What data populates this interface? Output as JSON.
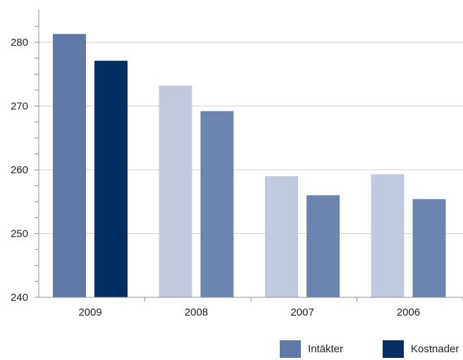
{
  "chart_data": {
    "type": "bar",
    "categories": [
      "2009",
      "2008",
      "2007",
      "2006"
    ],
    "series": [
      {
        "name": "Intäkter",
        "values": [
          281.3,
          273.2,
          259.0,
          259.3
        ]
      },
      {
        "name": "Kostnader",
        "values": [
          277.1,
          269.2,
          256.0,
          255.4
        ]
      }
    ],
    "bar_colors": [
      [
        "#5f7aa6",
        "#002f63"
      ],
      [
        "#c1c9dd",
        "#6c84b0"
      ],
      [
        "#c1c9dd",
        "#6c84b0"
      ],
      [
        "#c1c9dd",
        "#6c84b0"
      ]
    ],
    "ylim": [
      240,
      282
    ],
    "y_ticks": [
      "240",
      "250",
      "260",
      "270",
      "280"
    ],
    "grid": true,
    "legend_position": "bottom-right",
    "legend": [
      {
        "label": "Intäkter",
        "color": "#5f7aa6"
      },
      {
        "label": "Kostnader",
        "color": "#002f63"
      }
    ]
  }
}
